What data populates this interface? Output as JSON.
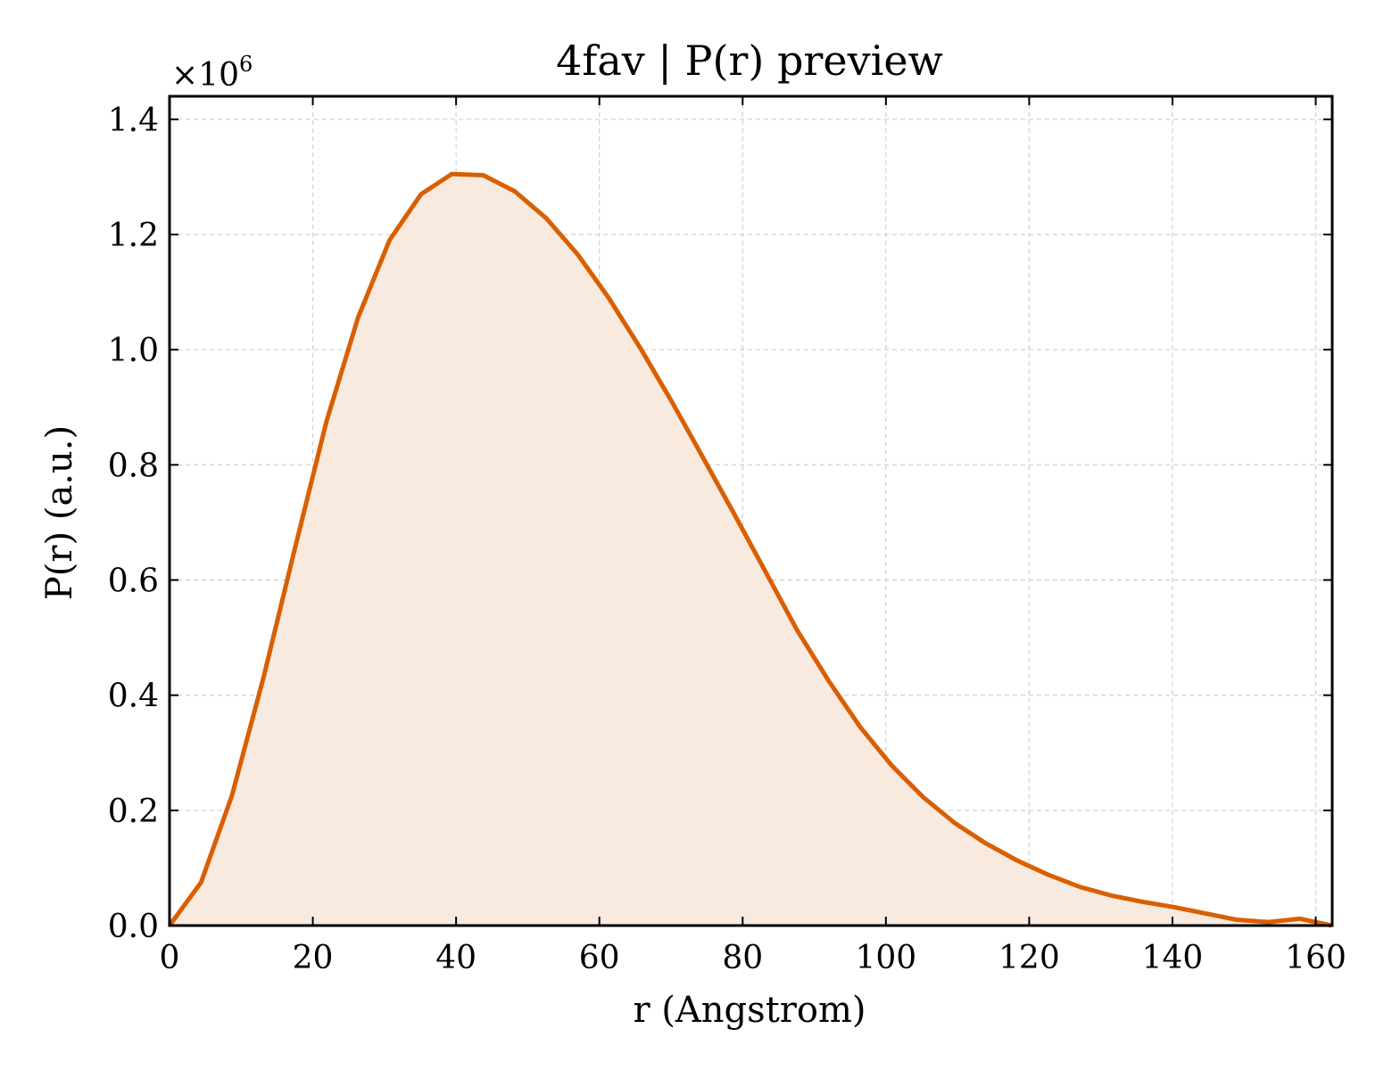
{
  "chart_data": {
    "type": "area",
    "title": "4fav | P(r) preview",
    "xlabel": "r (Angstrom)",
    "ylabel": "P(r) (a.u.)",
    "y_multiplier_base": "×10",
    "y_multiplier_exponent": "6",
    "xlim": [
      0,
      162.3
    ],
    "ylim": [
      0,
      1.44
    ],
    "x_ticks": [
      0,
      20,
      40,
      60,
      80,
      100,
      120,
      140,
      160
    ],
    "y_ticks": [
      0.0,
      0.2,
      0.4,
      0.6,
      0.8,
      1.0,
      1.2,
      1.4
    ],
    "x_tick_labels": [
      "0",
      "20",
      "40",
      "60",
      "80",
      "100",
      "120",
      "140",
      "160"
    ],
    "y_tick_labels": [
      "0.0",
      "0.2",
      "0.4",
      "0.6",
      "0.8",
      "1.0",
      "1.2",
      "1.4"
    ],
    "grid": true,
    "line_color": "#d95f02",
    "fill_color": "#f9eadf",
    "series": [
      {
        "x": [
          0,
          4.4,
          8.7,
          13.1,
          17.5,
          21.9,
          26.3,
          30.7,
          35.1,
          39.4,
          43.8,
          48.2,
          52.6,
          57.0,
          61.3,
          65.7,
          70.1,
          74.5,
          78.9,
          83.3,
          87.6,
          92.0,
          96.4,
          100.8,
          105.2,
          109.6,
          113.9,
          118.3,
          122.7,
          127.1,
          131.5,
          135.9,
          140.2,
          144.6,
          149.0,
          153.4,
          157.8,
          162.2
        ],
        "y": [
          0.0,
          0.075,
          0.225,
          0.43,
          0.655,
          0.875,
          1.055,
          1.19,
          1.27,
          1.305,
          1.303,
          1.275,
          1.228,
          1.165,
          1.09,
          1.003,
          0.91,
          0.812,
          0.713,
          0.612,
          0.513,
          0.425,
          0.345,
          0.278,
          0.223,
          0.178,
          0.143,
          0.113,
          0.088,
          0.067,
          0.052,
          0.041,
          0.032,
          0.021,
          0.01,
          0.006,
          0.012,
          0.0
        ]
      }
    ]
  }
}
